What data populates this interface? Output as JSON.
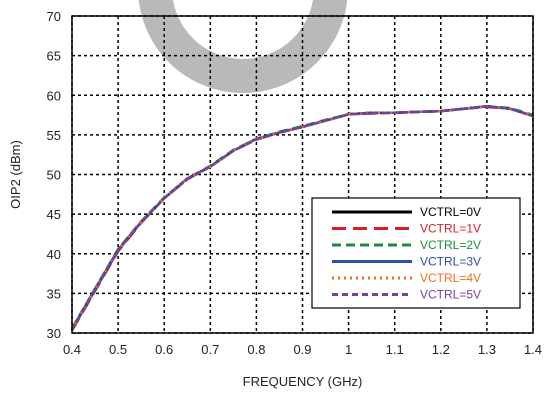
{
  "chart_data": {
    "type": "line",
    "title": "",
    "xlabel": "FREQUENCY (GHz)",
    "ylabel": "OIP2 (dBm)",
    "xlim": [
      0.4,
      1.4
    ],
    "ylim": [
      30,
      70
    ],
    "xticks": [
      "0.4",
      "0.5",
      "0.6",
      "0.7",
      "0.8",
      "0.9",
      "1",
      "1.1",
      "1.2",
      "1.3",
      "1.4"
    ],
    "yticks": [
      "30",
      "35",
      "40",
      "45",
      "50",
      "55",
      "60",
      "65",
      "70"
    ],
    "grid": true,
    "legend_position": "bottom-right",
    "x": [
      0.4,
      0.45,
      0.5,
      0.55,
      0.6,
      0.65,
      0.7,
      0.75,
      0.8,
      0.85,
      0.9,
      0.95,
      1.0,
      1.05,
      1.1,
      1.15,
      1.2,
      1.25,
      1.3,
      1.35,
      1.4
    ],
    "series": [
      {
        "name": "VCTRL=0V",
        "color": "#000000",
        "dash": "solid",
        "values": [
          30.5,
          35.5,
          40.5,
          44.0,
          47.0,
          49.5,
          51.0,
          53.0,
          54.5,
          55.3,
          56.0,
          56.8,
          57.6,
          57.8,
          57.8,
          57.9,
          58.0,
          58.3,
          58.6,
          58.3,
          57.4
        ]
      },
      {
        "name": "VCTRL=1V",
        "color": "#d42027",
        "dash": "long",
        "values": [
          30.3,
          35.3,
          40.3,
          43.9,
          47.0,
          49.4,
          51.0,
          53.0,
          54.4,
          55.3,
          56.0,
          56.8,
          57.6,
          57.7,
          57.8,
          57.9,
          58.0,
          58.3,
          58.5,
          58.3,
          57.4
        ]
      },
      {
        "name": "VCTRL=2V",
        "color": "#1e8a3e",
        "dash": "medium",
        "values": [
          30.6,
          35.6,
          40.6,
          44.1,
          47.1,
          49.5,
          51.1,
          53.1,
          54.5,
          55.4,
          56.1,
          56.9,
          57.6,
          57.8,
          57.8,
          57.9,
          58.0,
          58.3,
          58.6,
          58.4,
          57.5
        ]
      },
      {
        "name": "VCTRL=3V",
        "color": "#2d4ea2",
        "dash": "solid",
        "values": [
          30.4,
          35.4,
          40.4,
          44.0,
          47.0,
          49.5,
          51.0,
          53.0,
          54.5,
          55.3,
          56.0,
          56.8,
          57.6,
          57.8,
          57.8,
          57.9,
          58.0,
          58.3,
          58.6,
          58.3,
          57.4
        ]
      },
      {
        "name": "VCTRL=4V",
        "color": "#f26d21",
        "dash": "dotted",
        "values": [
          30.5,
          35.5,
          40.5,
          44.0,
          47.0,
          49.5,
          51.0,
          53.0,
          54.5,
          55.3,
          56.0,
          56.8,
          57.6,
          57.8,
          57.8,
          57.9,
          58.0,
          58.3,
          58.6,
          58.3,
          57.4
        ]
      },
      {
        "name": "VCTRL=5V",
        "color": "#7a3f9a",
        "dash": "short",
        "values": [
          30.4,
          35.4,
          40.5,
          44.0,
          47.0,
          49.4,
          51.0,
          53.0,
          54.4,
          55.3,
          56.0,
          56.8,
          57.6,
          57.7,
          57.8,
          57.9,
          58.0,
          58.3,
          58.6,
          58.3,
          57.4
        ]
      }
    ]
  }
}
